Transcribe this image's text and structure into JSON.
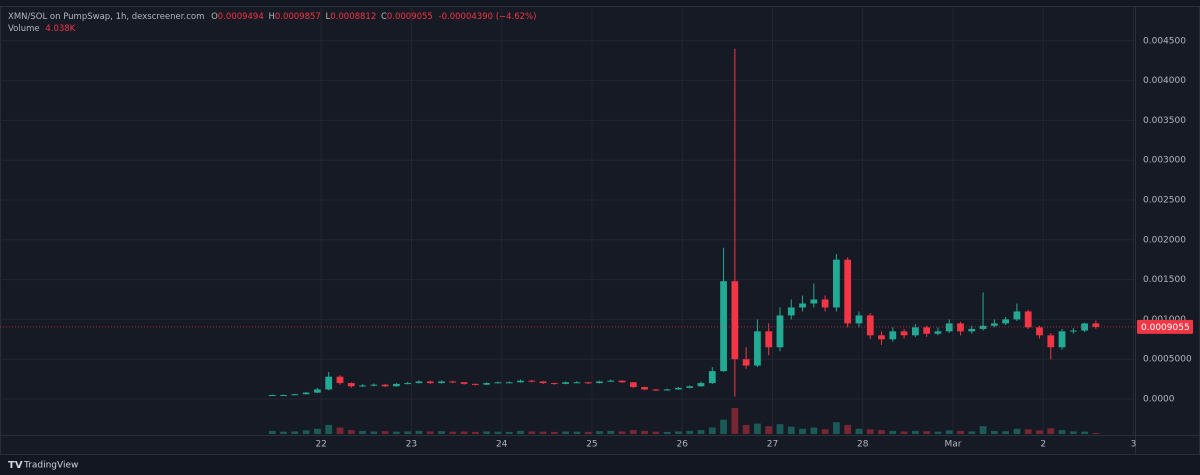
{
  "chart_data": {
    "type": "candlestick",
    "title": "XMN/SOL on PumpSwap, 1h, dexscreener.com",
    "ohlc_labels": [
      "O",
      "H",
      "L",
      "C"
    ],
    "change_label": "-0.00004390 (−4.62%)",
    "x": [
      -13,
      -10,
      -7,
      -4,
      -1,
      2,
      5,
      8,
      11,
      14,
      17,
      20,
      23,
      26,
      29,
      32,
      35,
      38,
      41,
      44,
      47,
      50,
      53,
      56,
      59,
      62,
      65,
      68,
      71,
      74,
      77,
      80,
      83,
      86,
      89,
      92,
      95,
      98,
      101,
      104,
      107,
      110,
      113,
      116,
      119,
      122,
      125,
      128,
      131,
      134,
      137,
      140,
      143,
      146,
      149,
      152,
      155,
      158,
      161,
      164,
      167,
      170,
      173,
      176,
      179,
      182,
      185,
      188,
      191,
      194,
      197,
      200,
      203,
      206
    ],
    "open": [
      4.5e-05,
      5e-05,
      5e-05,
      6e-05,
      8e-05,
      0.00012,
      0.00028,
      0.0002,
      0.00016,
      0.00017,
      0.00018,
      0.00016,
      0.00019,
      0.0002,
      0.00022,
      0.0002,
      0.00022,
      0.00021,
      0.00019,
      0.00018,
      0.0002,
      0.00021,
      0.00021,
      0.00023,
      0.00022,
      0.0002,
      0.00019,
      0.00021,
      0.00021,
      0.0002,
      0.00022,
      0.00023,
      0.00021,
      0.00015,
      0.00012,
      0.00011,
      0.00012,
      0.00014,
      0.00016,
      0.0002,
      0.00035,
      0.00148,
      0.0005,
      0.00042,
      0.00085,
      0.00065,
      0.00105,
      0.00115,
      0.0012,
      0.00125,
      0.00115,
      0.00175,
      0.00095,
      0.00105,
      0.0008,
      0.00075,
      0.00085,
      0.0008,
      0.0009,
      0.00082,
      0.00085,
      0.00095,
      0.00085,
      0.00088,
      0.00092,
      0.00095,
      0.001,
      0.0011,
      0.0009,
      0.0008,
      0.00065,
      0.00085,
      0.00086,
      0.0009494
    ],
    "high": [
      5.5e-05,
      5.6e-05,
      6.5e-05,
      9e-05,
      0.00014,
      0.00034,
      0.0003,
      0.00021,
      0.000185,
      0.000195,
      0.00019,
      0.0002,
      0.000215,
      0.000235,
      0.00023,
      0.000235,
      0.00023,
      0.000215,
      0.000195,
      0.00021,
      0.00022,
      0.00022,
      0.000245,
      0.00024,
      0.000225,
      0.000205,
      0.00022,
      0.000225,
      0.000215,
      0.00023,
      0.000245,
      0.000235,
      0.000215,
      0.000155,
      0.000125,
      0.00013,
      0.00015,
      0.00017,
      0.00022,
      0.0004,
      0.0019,
      0.0044,
      0.00065,
      0.001,
      0.00095,
      0.00115,
      0.00125,
      0.0013,
      0.00145,
      0.0013,
      0.00182,
      0.00178,
      0.0011,
      0.00108,
      0.00085,
      0.0009,
      0.00088,
      0.00094,
      0.00092,
      0.0009,
      0.001,
      0.00097,
      0.00092,
      0.00134,
      0.001,
      0.00103,
      0.0012,
      0.00112,
      0.00092,
      0.00083,
      0.00088,
      0.00089,
      0.00096,
      0.0009857
    ],
    "low": [
      4.2e-05,
      4.7e-05,
      4.8e-05,
      5.8e-05,
      7.5e-05,
      0.00011,
      0.00018,
      0.00014,
      0.00015,
      0.00016,
      0.00015,
      0.000155,
      0.000185,
      0.000195,
      0.00019,
      0.000195,
      0.0002,
      0.00018,
      0.00017,
      0.000175,
      0.000195,
      0.0002,
      0.000205,
      0.00021,
      0.00019,
      0.00018,
      0.000185,
      0.0002,
      0.00019,
      0.000195,
      0.000215,
      0.0002,
      0.00014,
      0.00011,
      0.0001,
      0.000105,
      0.000115,
      0.000135,
      0.000155,
      0.00019,
      0.00034,
      3e-05,
      0.00038,
      0.0004,
      0.00055,
      0.0006,
      0.001,
      0.0011,
      0.00115,
      0.0011,
      0.0011,
      0.0009,
      0.0009,
      0.00075,
      0.00068,
      0.00072,
      0.00076,
      0.00078,
      0.00078,
      0.0008,
      0.00083,
      0.0008,
      0.00082,
      0.00086,
      0.0009,
      0.00093,
      0.00098,
      0.00088,
      0.00076,
      0.0005,
      0.00062,
      0.00082,
      0.00084,
      0.0008812
    ],
    "close": [
      5e-05,
      5e-05,
      6e-05,
      8e-05,
      0.00012,
      0.00028,
      0.0002,
      0.00016,
      0.00017,
      0.00018,
      0.00016,
      0.00019,
      0.0002,
      0.00022,
      0.0002,
      0.00022,
      0.00021,
      0.00019,
      0.00018,
      0.0002,
      0.00021,
      0.00021,
      0.00023,
      0.00022,
      0.0002,
      0.00019,
      0.00021,
      0.00021,
      0.0002,
      0.00022,
      0.00023,
      0.00021,
      0.00015,
      0.00012,
      0.00011,
      0.00012,
      0.00014,
      0.00016,
      0.0002,
      0.00035,
      0.00148,
      0.0005,
      0.00042,
      0.00085,
      0.00065,
      0.00105,
      0.00115,
      0.0012,
      0.00125,
      0.00115,
      0.00175,
      0.00095,
      0.00105,
      0.0008,
      0.00075,
      0.00085,
      0.0008,
      0.0009,
      0.00082,
      0.00085,
      0.00095,
      0.00085,
      0.00088,
      0.00092,
      0.00095,
      0.001,
      0.0011,
      0.0009,
      0.0008,
      0.00065,
      0.00085,
      0.00086,
      0.0009494,
      0.0009055
    ],
    "volume": {
      "name": "Volume",
      "value_label": "4.038K",
      "values": [
        12000,
        9000,
        10000,
        14000,
        20000,
        35000,
        25000,
        15000,
        12000,
        10000,
        11000,
        9000,
        10000,
        12000,
        10000,
        11000,
        9000,
        10000,
        8000,
        10000,
        9000,
        8000,
        12000,
        10000,
        9000,
        8000,
        10000,
        9000,
        8000,
        11000,
        12000,
        10000,
        15000,
        12000,
        9000,
        8000,
        10000,
        12000,
        15000,
        25000,
        55000,
        100000,
        35000,
        40000,
        30000,
        38000,
        28000,
        20000,
        25000,
        18000,
        45000,
        35000,
        20000,
        18000,
        15000,
        12000,
        10000,
        12000,
        11000,
        9000,
        14000,
        12000,
        10000,
        30000,
        12000,
        11000,
        20000,
        18000,
        14000,
        22000,
        15000,
        10000,
        9000,
        4038
      ]
    },
    "colors": {
      "up": "#22ab94",
      "down": "#f23645"
    },
    "xlim": [
      -85.4,
      216.4
    ],
    "xticks": [
      {
        "value": 0,
        "label": "22"
      },
      {
        "value": 24,
        "label": "23"
      },
      {
        "value": 48,
        "label": "24"
      },
      {
        "value": 72,
        "label": "25"
      },
      {
        "value": 96,
        "label": "26"
      },
      {
        "value": 120,
        "label": "27"
      },
      {
        "value": 144,
        "label": "28"
      },
      {
        "value": 168,
        "label": "Mar"
      },
      {
        "value": 192,
        "label": "2"
      },
      {
        "value": 216,
        "label": "3"
      }
    ],
    "ylim": [
      -0.000515,
      0.004912
    ],
    "yticks": [
      {
        "value": 0,
        "label": "0.0000"
      },
      {
        "value": 0.0005,
        "label": "0.0005000"
      },
      {
        "value": 0.001,
        "label": "0.001000"
      },
      {
        "value": 0.0015,
        "label": "0.001500"
      },
      {
        "value": 0.002,
        "label": "0.002000"
      },
      {
        "value": 0.0025,
        "label": "0.002500"
      },
      {
        "value": 0.003,
        "label": "0.003000"
      },
      {
        "value": 0.0035,
        "label": "0.003500"
      },
      {
        "value": 0.004,
        "label": "0.004000"
      },
      {
        "value": 0.0045,
        "label": "0.004500"
      }
    ],
    "grid": true,
    "attribution": "TradingView"
  }
}
